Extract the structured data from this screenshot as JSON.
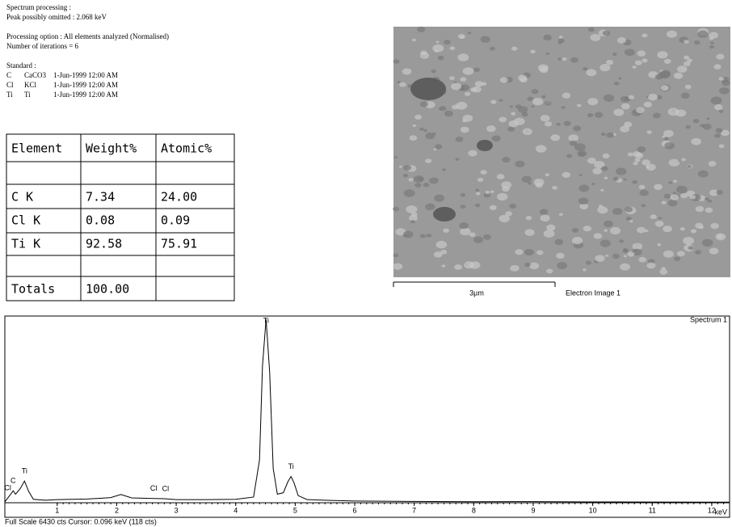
{
  "header": {
    "lines": [
      "Spectrum processing :",
      "Peak possibly omitted : 2.068 keV",
      "Processing option : All elements analyzed (Normalised)",
      "Number of iterations = 6"
    ]
  },
  "standard": {
    "title": "Standard :",
    "rows": [
      [
        "C",
        "CaCO3",
        "1-Jun-1999 12:00 AM"
      ],
      [
        "Cl",
        "KCl",
        "1-Jun-1999 12:00 AM"
      ],
      [
        "Ti",
        "Ti",
        "1-Jun-1999 12:00 AM"
      ]
    ]
  },
  "table": {
    "columns": [
      "Element",
      "Weight%",
      "Atomic%"
    ],
    "rows": [
      [
        "C K",
        "7.34",
        "24.00"
      ],
      [
        "Cl K",
        "0.08",
        "0.09"
      ],
      [
        "Ti K",
        "92.58",
        "75.91"
      ],
      [
        "Totals",
        "100.00"
      ]
    ]
  },
  "image": {
    "scale_label": "3µm",
    "caption": "Electron Image 1"
  },
  "spectrum": {
    "title": "Spectrum 1",
    "x_label": "keV",
    "footer": "Full Scale 6430 cts  Cursor: 0.096 keV (118 cts)",
    "xlim": [
      0.12,
      12.3
    ],
    "ylim": [
      0,
      6430
    ],
    "xticks": [
      1,
      2,
      3,
      4,
      5,
      6,
      7,
      8,
      9,
      10,
      11,
      12
    ],
    "color": "#000000",
    "x": [
      0.12,
      0.2,
      0.26,
      0.3,
      0.38,
      0.45,
      0.52,
      0.6,
      0.8,
      1.0,
      1.5,
      1.9,
      2.07,
      2.25,
      2.62,
      2.8,
      3.0,
      3.5,
      4.0,
      4.3,
      4.4,
      4.45,
      4.51,
      4.57,
      4.63,
      4.7,
      4.8,
      4.88,
      4.93,
      4.98,
      5.05,
      5.2,
      5.6,
      6,
      7,
      8,
      9,
      10,
      11,
      12,
      12.3
    ],
    "values": [
      30,
      250,
      420,
      300,
      500,
      760,
      400,
      120,
      90,
      110,
      130,
      180,
      290,
      170,
      150,
      140,
      110,
      110,
      120,
      200,
      1500,
      4800,
      6430,
      4600,
      1200,
      300,
      350,
      750,
      920,
      700,
      250,
      110,
      80,
      60,
      45,
      35,
      40,
      30,
      25,
      20,
      20
    ],
    "peak_labels": [
      {
        "label": "Cl",
        "energy": 0.17
      },
      {
        "label": "C",
        "energy": 0.26
      },
      {
        "label": "Ti",
        "energy": 0.45
      },
      {
        "label": "Cl",
        "energy": 2.62
      },
      {
        "label": "Cl",
        "energy": 2.82
      },
      {
        "label": "Ti",
        "energy": 4.51
      },
      {
        "label": "Ti",
        "energy": 4.93
      }
    ]
  }
}
